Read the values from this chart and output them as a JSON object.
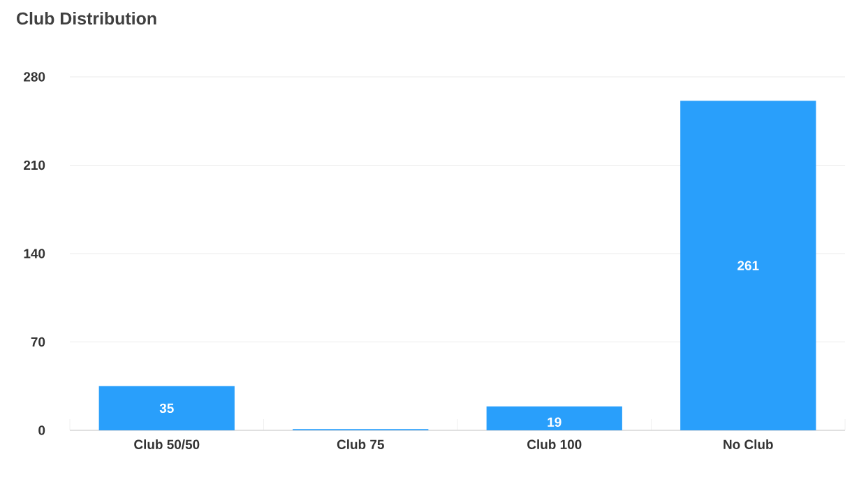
{
  "chart_data": {
    "type": "bar",
    "title": "Club Distribution",
    "categories": [
      "Club 50/50",
      "Club 75",
      "Club 100",
      "No Club"
    ],
    "values": [
      35,
      1,
      19,
      261
    ],
    "value_labels": [
      "35",
      null,
      "19",
      "261"
    ],
    "color": "#299ffb",
    "ylim": [
      0,
      280
    ],
    "yticks": [
      0,
      70,
      140,
      210,
      280
    ],
    "grid": "y"
  }
}
